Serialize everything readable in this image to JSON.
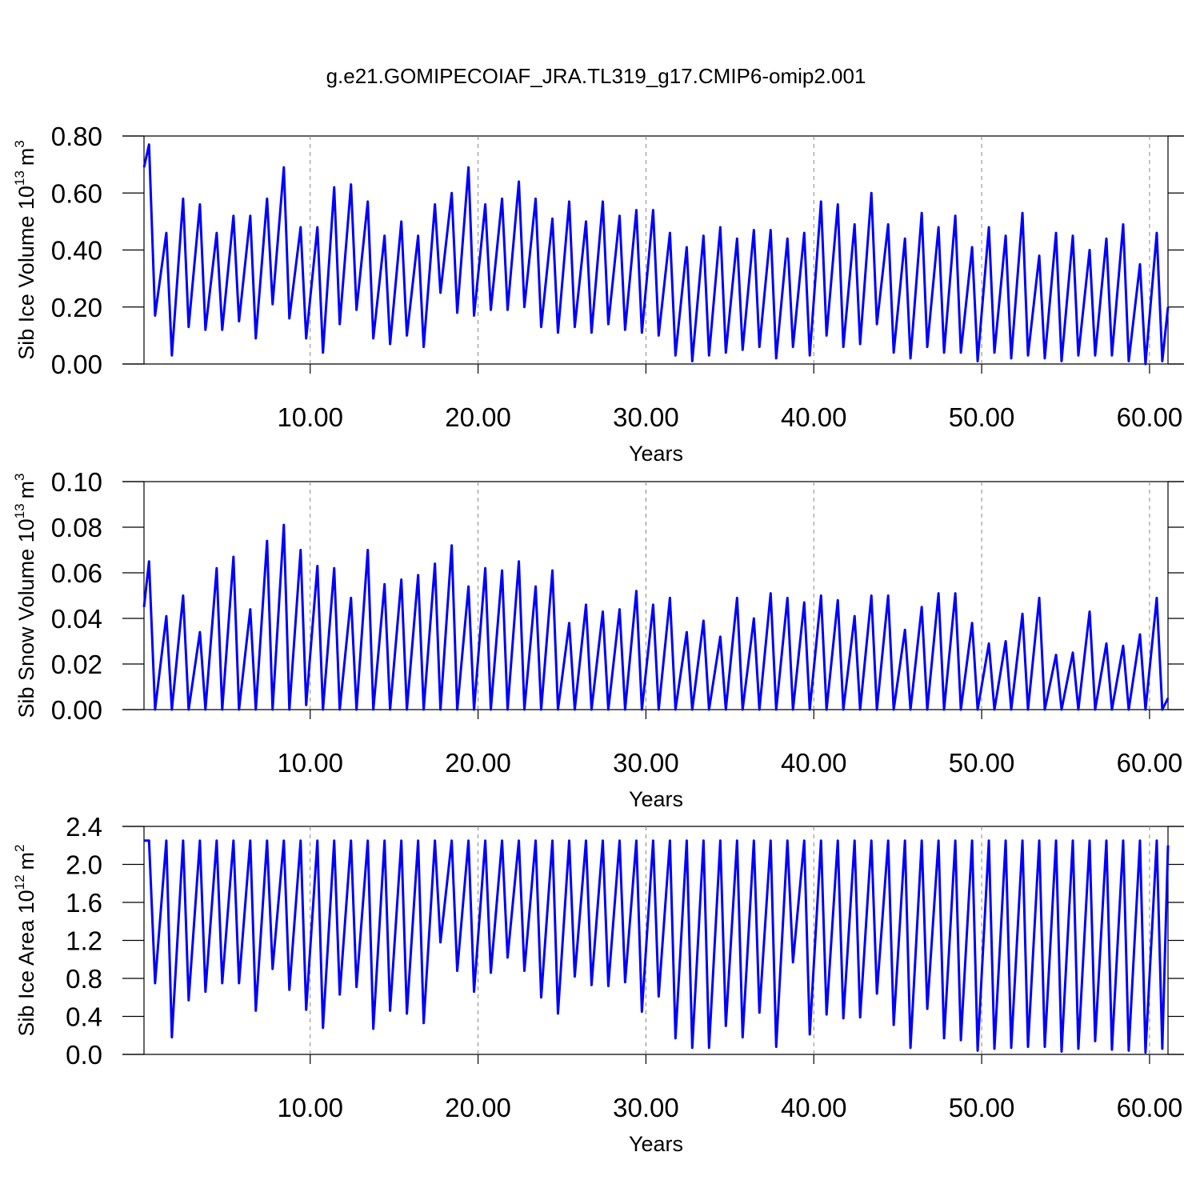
{
  "title": "g.e21.GOMIPECOIAF_JRA.TL319_g17.CMIP6-omip2.001",
  "chart_data": [
    {
      "type": "line",
      "color": "#0000ff",
      "xlabel": "Years",
      "ylabel": {
        "text": "Sib Ice Volume 10",
        "exponent": "13",
        "unit": "m",
        "unit_exponent": "3"
      },
      "xlim": [
        0.1,
        61.1
      ],
      "xticks": [
        {
          "value": 10,
          "label": "10.00"
        },
        {
          "value": 20,
          "label": "20.00"
        },
        {
          "value": 30,
          "label": "30.00"
        },
        {
          "value": 40,
          "label": "40.00"
        },
        {
          "value": 50,
          "label": "50.00"
        },
        {
          "value": 60,
          "label": "60.00"
        }
      ],
      "xgrid": true,
      "ylim": [
        0,
        0.8
      ],
      "yticks": [
        {
          "value": 0,
          "label": "0.00"
        },
        {
          "value": 0.2,
          "label": "0.20"
        },
        {
          "value": 0.4,
          "label": "0.40"
        },
        {
          "value": 0.6,
          "label": "0.60"
        },
        {
          "value": 0.8,
          "label": "0.80"
        }
      ],
      "x": [
        0.1,
        0.4,
        0.76,
        1.43,
        1.76,
        2.43,
        2.76,
        3.43,
        3.76,
        4.43,
        4.76,
        5.43,
        5.76,
        6.43,
        6.76,
        7.43,
        7.76,
        8.43,
        8.76,
        9.43,
        9.76,
        10.43,
        10.76,
        11.43,
        11.76,
        12.43,
        12.76,
        13.43,
        13.76,
        14.43,
        14.76,
        15.43,
        15.76,
        16.43,
        16.76,
        17.43,
        17.76,
        18.43,
        18.76,
        19.43,
        19.76,
        20.43,
        20.76,
        21.43,
        21.76,
        22.43,
        22.76,
        23.43,
        23.76,
        24.43,
        24.76,
        25.43,
        25.76,
        26.43,
        26.76,
        27.43,
        27.76,
        28.43,
        28.76,
        29.43,
        29.76,
        30.43,
        30.76,
        31.43,
        31.76,
        32.43,
        32.76,
        33.43,
        33.76,
        34.43,
        34.76,
        35.43,
        35.76,
        36.43,
        36.76,
        37.43,
        37.76,
        38.43,
        38.76,
        39.43,
        39.76,
        40.43,
        40.76,
        41.43,
        41.76,
        42.43,
        42.76,
        43.43,
        43.76,
        44.43,
        44.76,
        45.43,
        45.76,
        46.43,
        46.76,
        47.43,
        47.76,
        48.43,
        48.76,
        49.43,
        49.76,
        50.43,
        50.76,
        51.43,
        51.76,
        52.43,
        52.76,
        53.43,
        53.76,
        54.43,
        54.76,
        55.43,
        55.76,
        56.43,
        56.76,
        57.43,
        57.76,
        58.43,
        58.76,
        59.43,
        59.76,
        60.43,
        60.76,
        61.1
      ],
      "values": [
        0.69,
        0.77,
        0.17,
        0.46,
        0.03,
        0.58,
        0.13,
        0.56,
        0.12,
        0.46,
        0.12,
        0.52,
        0.15,
        0.52,
        0.09,
        0.58,
        0.21,
        0.69,
        0.16,
        0.48,
        0.09,
        0.48,
        0.04,
        0.62,
        0.14,
        0.63,
        0.19,
        0.57,
        0.09,
        0.45,
        0.07,
        0.5,
        0.1,
        0.45,
        0.06,
        0.56,
        0.25,
        0.6,
        0.18,
        0.69,
        0.17,
        0.56,
        0.19,
        0.58,
        0.19,
        0.64,
        0.2,
        0.58,
        0.13,
        0.51,
        0.11,
        0.57,
        0.13,
        0.5,
        0.11,
        0.57,
        0.14,
        0.52,
        0.12,
        0.54,
        0.11,
        0.54,
        0.1,
        0.46,
        0.03,
        0.41,
        0.01,
        0.45,
        0.03,
        0.48,
        0.04,
        0.44,
        0.05,
        0.47,
        0.06,
        0.47,
        0.02,
        0.44,
        0.06,
        0.46,
        0.03,
        0.57,
        0.1,
        0.56,
        0.06,
        0.49,
        0.07,
        0.6,
        0.14,
        0.49,
        0.04,
        0.44,
        0.02,
        0.53,
        0.06,
        0.48,
        0.04,
        0.52,
        0.04,
        0.41,
        0.01,
        0.48,
        0.04,
        0.45,
        0.02,
        0.53,
        0.03,
        0.38,
        0.02,
        0.46,
        0.01,
        0.45,
        0.03,
        0.4,
        0.03,
        0.44,
        0.03,
        0.49,
        0.01,
        0.35,
        0.0,
        0.46,
        0.01,
        0.2
      ]
    },
    {
      "type": "line",
      "color": "#0000ff",
      "xlabel": "Years",
      "ylabel": {
        "text": "Sib Snow Volume 10",
        "exponent": "13",
        "unit": "m",
        "unit_exponent": "3"
      },
      "xlim": [
        0.1,
        61.1
      ],
      "xticks": [
        {
          "value": 10,
          "label": "10.00"
        },
        {
          "value": 20,
          "label": "20.00"
        },
        {
          "value": 30,
          "label": "30.00"
        },
        {
          "value": 40,
          "label": "40.00"
        },
        {
          "value": 50,
          "label": "50.00"
        },
        {
          "value": 60,
          "label": "60.00"
        }
      ],
      "xgrid": true,
      "ylim": [
        0,
        0.1
      ],
      "yticks": [
        {
          "value": 0,
          "label": "0.00"
        },
        {
          "value": 0.02,
          "label": "0.02"
        },
        {
          "value": 0.04,
          "label": "0.04"
        },
        {
          "value": 0.06,
          "label": "0.06"
        },
        {
          "value": 0.08,
          "label": "0.08"
        },
        {
          "value": 0.1,
          "label": "0.10"
        }
      ],
      "x": [
        0.1,
        0.4,
        0.76,
        1.43,
        1.76,
        2.43,
        2.76,
        3.43,
        3.76,
        4.43,
        4.76,
        5.43,
        5.76,
        6.43,
        6.76,
        7.43,
        7.76,
        8.43,
        8.76,
        9.43,
        9.76,
        10.43,
        10.76,
        11.43,
        11.76,
        12.43,
        12.76,
        13.43,
        13.76,
        14.43,
        14.76,
        15.43,
        15.76,
        16.43,
        16.76,
        17.43,
        17.76,
        18.43,
        18.76,
        19.43,
        19.76,
        20.43,
        20.76,
        21.43,
        21.76,
        22.43,
        22.76,
        23.43,
        23.76,
        24.43,
        24.76,
        25.43,
        25.76,
        26.43,
        26.76,
        27.43,
        27.76,
        28.43,
        28.76,
        29.43,
        29.76,
        30.43,
        30.76,
        31.43,
        31.76,
        32.43,
        32.76,
        33.43,
        33.76,
        34.43,
        34.76,
        35.43,
        35.76,
        36.43,
        36.76,
        37.43,
        37.76,
        38.43,
        38.76,
        39.43,
        39.76,
        40.43,
        40.76,
        41.43,
        41.76,
        42.43,
        42.76,
        43.43,
        43.76,
        44.43,
        44.76,
        45.43,
        45.76,
        46.43,
        46.76,
        47.43,
        47.76,
        48.43,
        48.76,
        49.43,
        49.76,
        50.43,
        50.76,
        51.43,
        51.76,
        52.43,
        52.76,
        53.43,
        53.76,
        54.43,
        54.76,
        55.43,
        55.76,
        56.43,
        56.76,
        57.43,
        57.76,
        58.43,
        58.76,
        59.43,
        59.76,
        60.43,
        60.76,
        61.1
      ],
      "values": [
        0.045,
        0.065,
        0,
        0.041,
        0,
        0.05,
        0,
        0.034,
        0,
        0.062,
        0,
        0.067,
        0,
        0.044,
        0,
        0.074,
        0,
        0.081,
        0,
        0.07,
        0.002,
        0.063,
        0,
        0.062,
        0,
        0.049,
        0,
        0.07,
        0,
        0.055,
        0,
        0.057,
        0,
        0.059,
        0,
        0.064,
        0,
        0.072,
        0,
        0.054,
        0,
        0.062,
        0,
        0.061,
        0,
        0.065,
        0,
        0.054,
        0,
        0.061,
        0,
        0.038,
        0,
        0.046,
        0,
        0.043,
        0,
        0.044,
        0,
        0.052,
        0,
        0.046,
        0,
        0.049,
        0,
        0.034,
        0,
        0.039,
        0,
        0.032,
        0,
        0.049,
        0,
        0.04,
        0,
        0.051,
        0,
        0.049,
        0,
        0.047,
        0,
        0.05,
        0,
        0.048,
        0,
        0.041,
        0,
        0.05,
        0,
        0.05,
        0,
        0.035,
        0,
        0.045,
        0,
        0.051,
        0,
        0.051,
        0,
        0.038,
        0,
        0.029,
        0,
        0.03,
        0,
        0.042,
        0,
        0.049,
        0,
        0.024,
        0,
        0.025,
        0,
        0.043,
        0,
        0.029,
        0,
        0.028,
        0,
        0.033,
        0,
        0.049,
        0,
        0.005
      ]
    },
    {
      "type": "line",
      "color": "#0000ff",
      "xlabel": "Years",
      "ylabel": {
        "text": "Sib Ice Area 10",
        "exponent": "12",
        "unit": "m",
        "unit_exponent": "2"
      },
      "xlim": [
        0.1,
        61.1
      ],
      "xticks": [
        {
          "value": 10,
          "label": "10.00"
        },
        {
          "value": 20,
          "label": "20.00"
        },
        {
          "value": 30,
          "label": "30.00"
        },
        {
          "value": 40,
          "label": "40.00"
        },
        {
          "value": 50,
          "label": "50.00"
        },
        {
          "value": 60,
          "label": "60.00"
        }
      ],
      "xgrid": true,
      "ylim": [
        0,
        2.4
      ],
      "yticks": [
        {
          "value": 0,
          "label": "0.0"
        },
        0.4,
        0.8,
        1.2,
        1.6,
        {
          "value": 2,
          "label": "2.0"
        },
        2.4
      ],
      "x": [
        0.1,
        0.4,
        0.76,
        1.43,
        1.76,
        2.43,
        2.76,
        3.43,
        3.76,
        4.43,
        4.76,
        5.43,
        5.76,
        6.43,
        6.76,
        7.43,
        7.76,
        8.43,
        8.76,
        9.43,
        9.76,
        10.43,
        10.76,
        11.43,
        11.76,
        12.43,
        12.76,
        13.43,
        13.76,
        14.43,
        14.76,
        15.43,
        15.76,
        16.43,
        16.76,
        17.43,
        17.76,
        18.43,
        18.76,
        19.43,
        19.76,
        20.43,
        20.76,
        21.43,
        21.76,
        22.43,
        22.76,
        23.43,
        23.76,
        24.43,
        24.76,
        25.43,
        25.76,
        26.43,
        26.76,
        27.43,
        27.76,
        28.43,
        28.76,
        29.43,
        29.76,
        30.43,
        30.76,
        31.43,
        31.76,
        32.43,
        32.76,
        33.43,
        33.76,
        34.43,
        34.76,
        35.43,
        35.76,
        36.43,
        36.76,
        37.43,
        37.76,
        38.43,
        38.76,
        39.43,
        39.76,
        40.43,
        40.76,
        41.43,
        41.76,
        42.43,
        42.76,
        43.43,
        43.76,
        44.43,
        44.76,
        45.43,
        45.76,
        46.43,
        46.76,
        47.43,
        47.76,
        48.43,
        48.76,
        49.43,
        49.76,
        50.43,
        50.76,
        51.43,
        51.76,
        52.43,
        52.76,
        53.43,
        53.76,
        54.43,
        54.76,
        55.43,
        55.76,
        56.43,
        56.76,
        57.43,
        57.76,
        58.43,
        58.76,
        59.43,
        59.76,
        60.43,
        60.76,
        61.1
      ],
      "values": [
        2.25,
        2.25,
        0.75,
        2.25,
        0.18,
        2.25,
        0.57,
        2.25,
        0.66,
        2.25,
        0.75,
        2.25,
        0.75,
        2.25,
        0.46,
        2.25,
        0.9,
        2.25,
        0.68,
        2.25,
        0.47,
        2.25,
        0.28,
        2.25,
        0.63,
        2.25,
        0.71,
        2.25,
        0.27,
        2.25,
        0.46,
        2.25,
        0.43,
        2.25,
        0.33,
        2.25,
        1.18,
        2.25,
        0.88,
        2.25,
        0.66,
        2.25,
        0.86,
        2.25,
        1.02,
        2.25,
        0.88,
        2.25,
        0.6,
        2.25,
        0.43,
        2.25,
        0.82,
        2.25,
        0.73,
        2.25,
        0.72,
        2.25,
        0.76,
        2.25,
        0.45,
        2.25,
        0.61,
        2.25,
        0.17,
        2.25,
        0.07,
        2.25,
        0.07,
        2.25,
        0.3,
        2.25,
        0.18,
        2.25,
        0.44,
        2.25,
        0.08,
        2.25,
        0.97,
        2.25,
        0.21,
        2.25,
        0.42,
        2.25,
        0.38,
        2.25,
        0.39,
        2.25,
        0.64,
        2.25,
        0.31,
        2.25,
        0.07,
        2.25,
        0.48,
        2.25,
        0.17,
        2.25,
        0.15,
        2.25,
        0.04,
        2.25,
        0.06,
        2.25,
        0.07,
        2.25,
        0.08,
        2.25,
        0.08,
        2.25,
        0.03,
        2.25,
        0.06,
        2.25,
        0.14,
        2.25,
        0.05,
        2.25,
        0.04,
        2.25,
        0.02,
        2.25,
        0.06,
        2.2
      ]
    }
  ]
}
